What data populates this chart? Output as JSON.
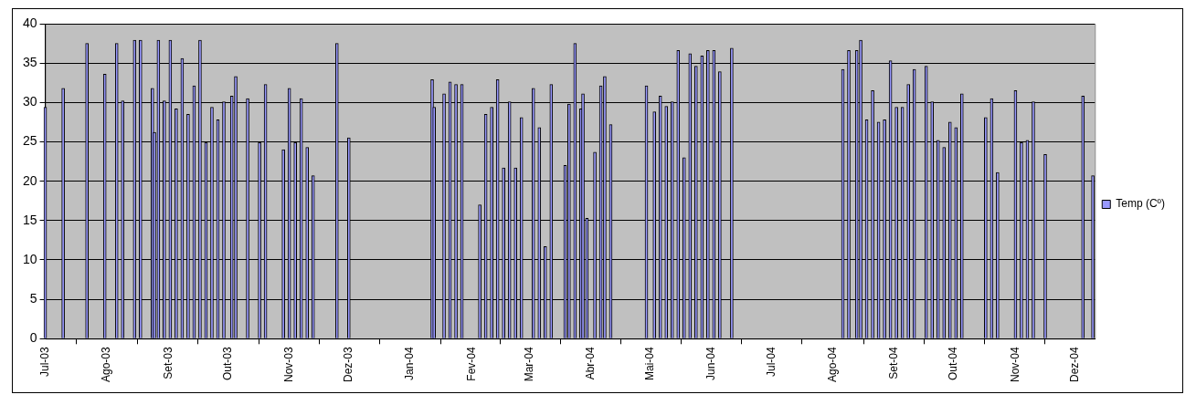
{
  "chart_data": {
    "type": "bar",
    "x": [
      "2003-07-01",
      "2003-07-10",
      "2003-07-22",
      "2003-07-31",
      "2003-08-06",
      "2003-08-09",
      "2003-08-15",
      "2003-08-18",
      "2003-08-24",
      "2003-08-25",
      "2003-08-27",
      "2003-08-30",
      "2003-09-02",
      "2003-09-05",
      "2003-09-08",
      "2003-09-11",
      "2003-09-14",
      "2003-09-17",
      "2003-09-20",
      "2003-09-23",
      "2003-09-26",
      "2003-09-29",
      "2003-10-03",
      "2003-10-05",
      "2003-10-11",
      "2003-10-17",
      "2003-10-20",
      "2003-10-29",
      "2003-11-01",
      "2003-11-04",
      "2003-11-07",
      "2003-11-10",
      "2003-11-13",
      "2003-11-25",
      "2003-12-01",
      "2004-01-12",
      "2004-01-13",
      "2004-01-18",
      "2004-01-21",
      "2004-01-24",
      "2004-01-27",
      "2004-02-05",
      "2004-02-08",
      "2004-02-11",
      "2004-02-14",
      "2004-02-17",
      "2004-02-20",
      "2004-02-23",
      "2004-02-26",
      "2004-03-03",
      "2004-03-06",
      "2004-03-09",
      "2004-03-12",
      "2004-03-19",
      "2004-03-21",
      "2004-03-24",
      "2004-03-27",
      "2004-03-28",
      "2004-03-30",
      "2004-04-03",
      "2004-04-06",
      "2004-04-08",
      "2004-04-11",
      "2004-04-29",
      "2004-05-03",
      "2004-05-06",
      "2004-05-09",
      "2004-05-12",
      "2004-05-15",
      "2004-05-18",
      "2004-05-21",
      "2004-05-24",
      "2004-05-27",
      "2004-05-30",
      "2004-06-02",
      "2004-06-05",
      "2004-06-11",
      "2004-08-06",
      "2004-08-09",
      "2004-08-13",
      "2004-08-15",
      "2004-08-18",
      "2004-08-21",
      "2004-08-24",
      "2004-08-27",
      "2004-08-30",
      "2004-09-02",
      "2004-09-05",
      "2004-09-08",
      "2004-09-11",
      "2004-09-17",
      "2004-09-20",
      "2004-09-23",
      "2004-09-26",
      "2004-09-29",
      "2004-10-02",
      "2004-10-05",
      "2004-10-17",
      "2004-10-20",
      "2004-10-23",
      "2004-11-01",
      "2004-11-04",
      "2004-11-07",
      "2004-11-10",
      "2004-11-16",
      "2004-12-05",
      "2004-12-10"
    ],
    "series": [
      {
        "name": "Temp (Cº)",
        "color": "#9999ff",
        "values": [
          29.4,
          31.8,
          37.5,
          33.6,
          37.5,
          30.2,
          37.9,
          37.9,
          31.8,
          26.2,
          37.9,
          30.2,
          37.9,
          29.2,
          35.6,
          28.5,
          32.1,
          37.9,
          24.9,
          29.4,
          27.8,
          30.1,
          30.8,
          33.3,
          30.5,
          24.9,
          32.3,
          24.0,
          31.8,
          24.9,
          30.5,
          24.3,
          20.7,
          37.5,
          25.5,
          32.9,
          29.4,
          31.1,
          32.6,
          32.3,
          32.3,
          17.0,
          28.5,
          29.4,
          32.9,
          21.7,
          30.1,
          21.7,
          28.1,
          31.8,
          26.8,
          11.7,
          32.3,
          22.0,
          29.8,
          37.5,
          29.2,
          31.1,
          15.3,
          23.7,
          32.1,
          33.3,
          27.2,
          32.1,
          28.8,
          30.8,
          29.5,
          30.1,
          36.6,
          23.0,
          36.2,
          34.6,
          35.9,
          36.6,
          36.6,
          33.9,
          36.9,
          34.2,
          36.6,
          36.6,
          37.9,
          27.8,
          31.5,
          27.5,
          27.8,
          35.3,
          29.4,
          29.4,
          32.3,
          34.2,
          34.6,
          30.1,
          25.2,
          24.3,
          27.5,
          26.8,
          31.1,
          28.1,
          30.5,
          21.1,
          31.5,
          24.9,
          25.2,
          30.1,
          23.4,
          30.8,
          20.7
        ]
      }
    ],
    "xlim": [
      "2003-07-01",
      "2004-12-11"
    ],
    "xticks": [
      {
        "value": "2003-07-01",
        "label": "Jul-03"
      },
      {
        "value": "2003-08-01",
        "label": "Ago-03"
      },
      {
        "value": "2003-09-01",
        "label": "Set-03"
      },
      {
        "value": "2003-10-01",
        "label": "Out-03"
      },
      {
        "value": "2003-11-01",
        "label": "Nov-03"
      },
      {
        "value": "2003-12-01",
        "label": "Dez-03"
      },
      {
        "value": "2004-01-01",
        "label": "Jan-04"
      },
      {
        "value": "2004-02-01",
        "label": "Fev-04"
      },
      {
        "value": "2004-03-01",
        "label": "Mar-04"
      },
      {
        "value": "2004-04-01",
        "label": "Abr-04"
      },
      {
        "value": "2004-05-01",
        "label": "Mai-04"
      },
      {
        "value": "2004-06-01",
        "label": "Jun-04"
      },
      {
        "value": "2004-07-01",
        "label": "Jul-04"
      },
      {
        "value": "2004-08-01",
        "label": "Ago-04"
      },
      {
        "value": "2004-09-01",
        "label": "Set-04"
      },
      {
        "value": "2004-10-01",
        "label": "Out-04"
      },
      {
        "value": "2004-11-01",
        "label": "Nov-04"
      },
      {
        "value": "2004-12-01",
        "label": "Dez-04"
      }
    ],
    "ylim": [
      0,
      40
    ],
    "yticks": [
      0,
      5,
      10,
      15,
      20,
      25,
      30,
      35,
      40
    ],
    "grid": "y",
    "legend": "right"
  }
}
